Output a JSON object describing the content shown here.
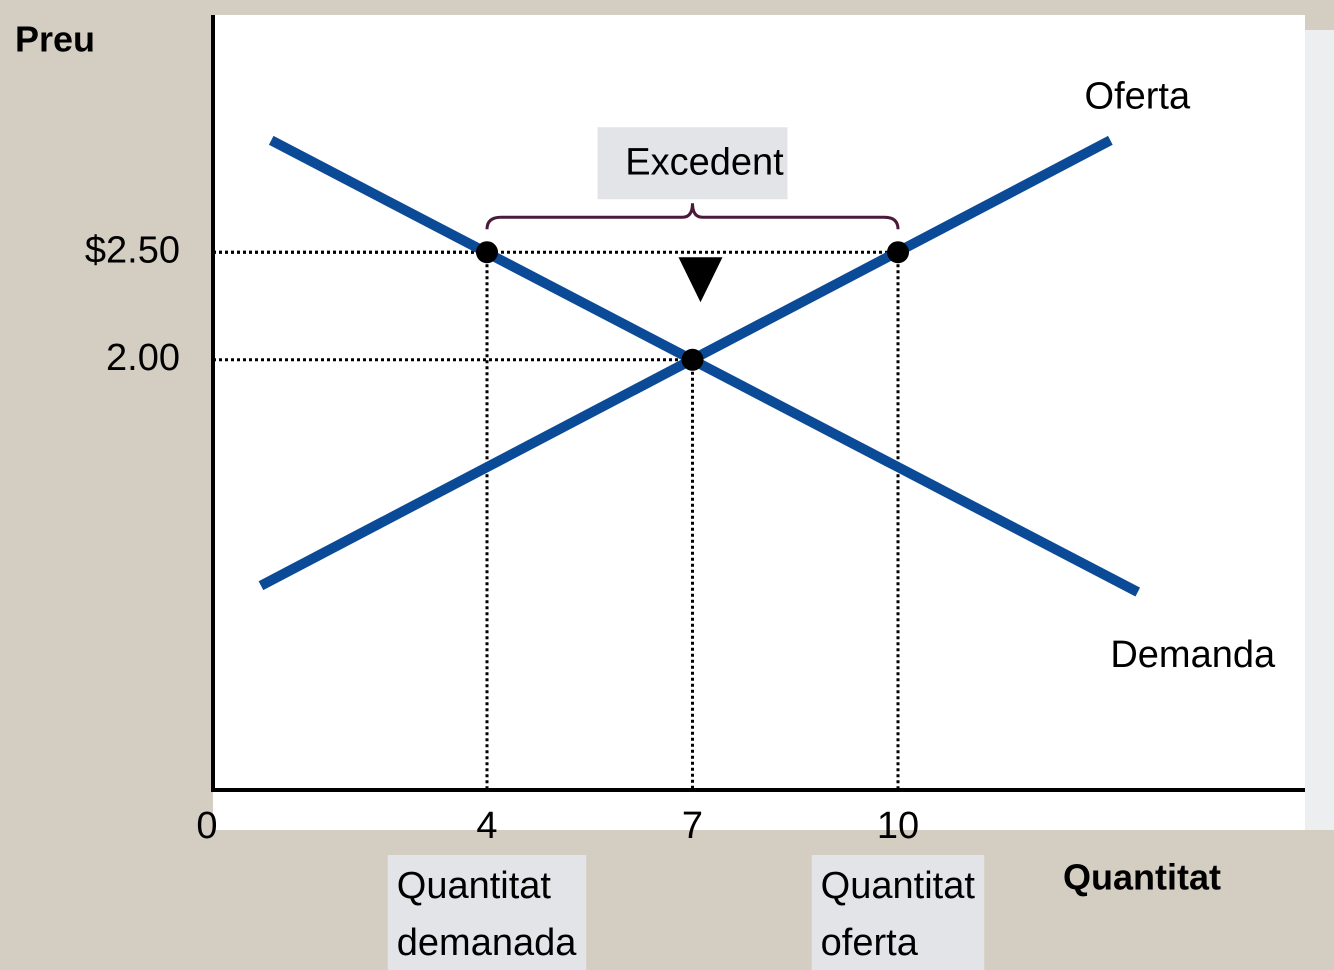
{
  "chart_data": {
    "type": "line",
    "y_label": "Preu",
    "x_label": "Quantitat",
    "xlim": [
      0,
      16
    ],
    "ylim": [
      0,
      3.6
    ],
    "xticks": [
      0,
      4,
      7,
      10
    ],
    "yticks": [
      {
        "value": 2.5,
        "label": "$2.50"
      },
      {
        "value": 2,
        "label": "2.00"
      }
    ],
    "series": [
      {
        "name": "Oferta",
        "color": "#0a4a96",
        "x": [
          0.7,
          13.1
        ],
        "values": [
          0.95,
          3.02
        ]
      },
      {
        "name": "Demanda",
        "color": "#0a4a96",
        "x": [
          0.85,
          13.5
        ],
        "values": [
          3.02,
          0.92
        ]
      }
    ],
    "points": {
      "x": [
        4,
        7,
        10
      ],
      "values": [
        2.5,
        2,
        2.5
      ],
      "color": "#000000"
    },
    "surplus": {
      "text": "Excedent",
      "x": [
        4,
        10
      ],
      "y": 2.5
    },
    "quantity_labels": [
      {
        "x": 4,
        "lines": [
          "Quantitat",
          "demanada"
        ]
      },
      {
        "x": 10,
        "lines": [
          "Quantitat",
          "oferta"
        ]
      }
    ]
  }
}
